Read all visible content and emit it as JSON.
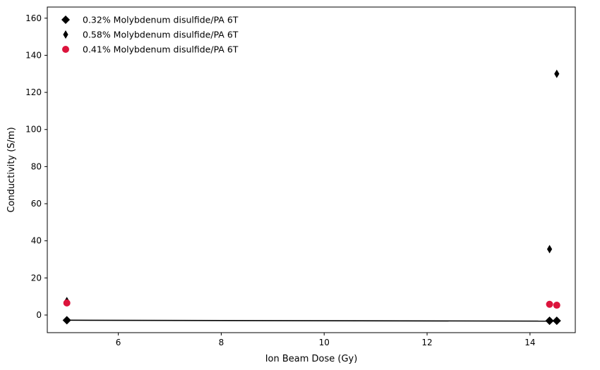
{
  "chart_data": {
    "type": "scatter",
    "title": "",
    "xlabel": "Ion Beam Dose (Gy)",
    "ylabel": "Conductivity (S/m)",
    "xlim": [
      4.62,
      14.88
    ],
    "ylim": [
      -9.5,
      166
    ],
    "xticks": [
      6,
      8,
      10,
      12,
      14
    ],
    "yticks": [
      0,
      20,
      40,
      60,
      80,
      100,
      120,
      140,
      160
    ],
    "grid": false,
    "legend_position": "upper-left",
    "series": [
      {
        "name": "0.32% Molybdenum disulfide/PA 6T",
        "marker": "diamond",
        "color": "#000000",
        "points": [
          [
            5.0,
            -2.8
          ],
          [
            14.38,
            -3.1
          ],
          [
            14.52,
            -3.1
          ]
        ]
      },
      {
        "name": "0.58% Molybdenum disulfide/PA 6T",
        "marker": "thin-diamond",
        "color": "#000000",
        "points": [
          [
            5.0,
            7.5
          ],
          [
            14.38,
            35.5
          ],
          [
            14.52,
            130.0
          ]
        ]
      },
      {
        "name": "0.41% Molybdenum disulfide/PA 6T",
        "marker": "circle",
        "color": "#dc143c",
        "points": [
          [
            5.0,
            6.5
          ],
          [
            14.38,
            5.8
          ],
          [
            14.52,
            5.3
          ]
        ]
      }
    ],
    "fit_line": {
      "color": "#000000",
      "points": [
        [
          5.0,
          -2.8
        ],
        [
          14.52,
          -3.3
        ]
      ]
    }
  }
}
